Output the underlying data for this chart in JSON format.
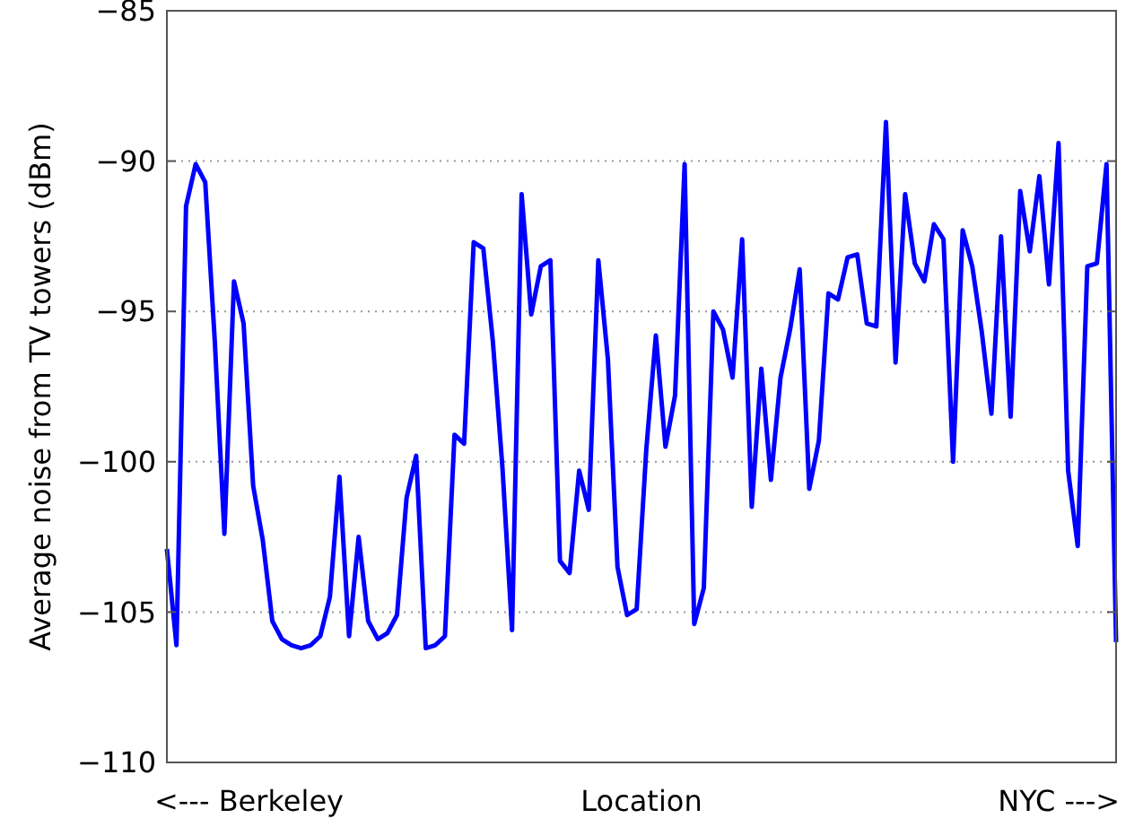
{
  "chart_data": {
    "type": "line",
    "ylabel": "Average noise from TV towers (dBm)",
    "xlabel": "Location",
    "annotations": [
      "<--- Berkeley",
      "NYC --->"
    ],
    "categories": [
      null,
      null,
      null,
      null,
      null,
      null,
      null,
      null,
      null,
      null,
      null,
      null,
      null,
      null,
      null,
      null,
      null,
      null,
      null,
      null,
      null,
      null,
      null,
      null,
      null,
      null,
      null,
      null,
      null,
      null,
      null,
      null,
      null,
      null,
      null,
      null,
      null,
      null,
      null,
      null,
      null,
      null,
      null,
      null,
      null,
      null,
      null,
      null,
      null,
      null,
      null,
      null,
      null,
      null,
      null,
      null,
      null,
      null,
      null,
      null,
      null,
      null,
      null,
      null,
      null,
      null,
      null,
      null,
      null,
      null,
      null,
      null,
      null,
      null,
      null,
      null,
      null,
      null,
      null,
      null,
      null,
      null,
      null,
      null,
      null,
      null,
      null,
      null,
      null,
      null,
      null,
      null,
      null,
      null,
      null,
      null,
      null,
      null,
      null,
      null
    ],
    "series": [
      {
        "color": "#0000ff",
        "values": [
          -102.9,
          -106.1,
          -91.5,
          -90.1,
          -90.7,
          -96.0,
          -102.4,
          -94.0,
          -95.4,
          -100.8,
          -102.6,
          -105.3,
          -105.9,
          -106.1,
          -106.2,
          -106.1,
          -105.8,
          -104.5,
          -100.5,
          -105.8,
          -102.5,
          -105.3,
          -105.9,
          -105.7,
          -105.1,
          -101.2,
          -99.8,
          -106.2,
          -106.1,
          -105.8,
          -99.1,
          -99.4,
          -92.7,
          -92.9,
          -96.0,
          -100.2,
          -105.6,
          -91.1,
          -95.1,
          -93.5,
          -93.3,
          -103.3,
          -103.7,
          -100.3,
          -101.6,
          -93.3,
          -96.6,
          -103.5,
          -105.1,
          -104.9,
          -99.6,
          -95.8,
          -99.5,
          -97.8,
          -90.1,
          -105.4,
          -104.2,
          -95.0,
          -95.6,
          -97.2,
          -92.6,
          -101.5,
          -96.9,
          -100.6,
          -97.2,
          -95.6,
          -93.6,
          -100.9,
          -99.3,
          -94.4,
          -94.6,
          -93.2,
          -93.1,
          -95.4,
          -95.5,
          -88.7,
          -96.7,
          -91.1,
          -93.4,
          -94.0,
          -92.1,
          -92.6,
          -100.0,
          -92.3,
          -93.5,
          -95.7,
          -98.4,
          -92.5,
          -98.5,
          -91.0,
          -93.0,
          -90.5,
          -94.1,
          -89.4,
          -100.3,
          -102.8,
          -93.5,
          -93.4,
          -90.1,
          -106.0
        ]
      }
    ],
    "ylim": [
      -110,
      -85
    ],
    "yticks": [
      -110,
      -105,
      -100,
      -95,
      -90,
      -85
    ],
    "grid": "y",
    "marker": "none",
    "line_style": "solid"
  }
}
